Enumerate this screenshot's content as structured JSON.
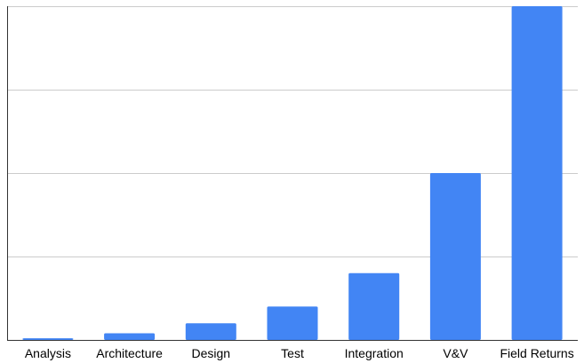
{
  "chart_data": {
    "type": "bar",
    "categories": [
      "Analysis",
      "Architecture",
      "Design",
      "Test",
      "Integration",
      "V&V",
      "Field Returns"
    ],
    "values": [
      0.5,
      2,
      5,
      10,
      20,
      50,
      100
    ],
    "ylim": [
      0,
      100
    ],
    "grid": true,
    "legend": "none",
    "y_tick_labels_visible": false,
    "colors": {
      "bar": "#4285f4",
      "grid": "#cccccc",
      "axis": "#333333"
    }
  }
}
